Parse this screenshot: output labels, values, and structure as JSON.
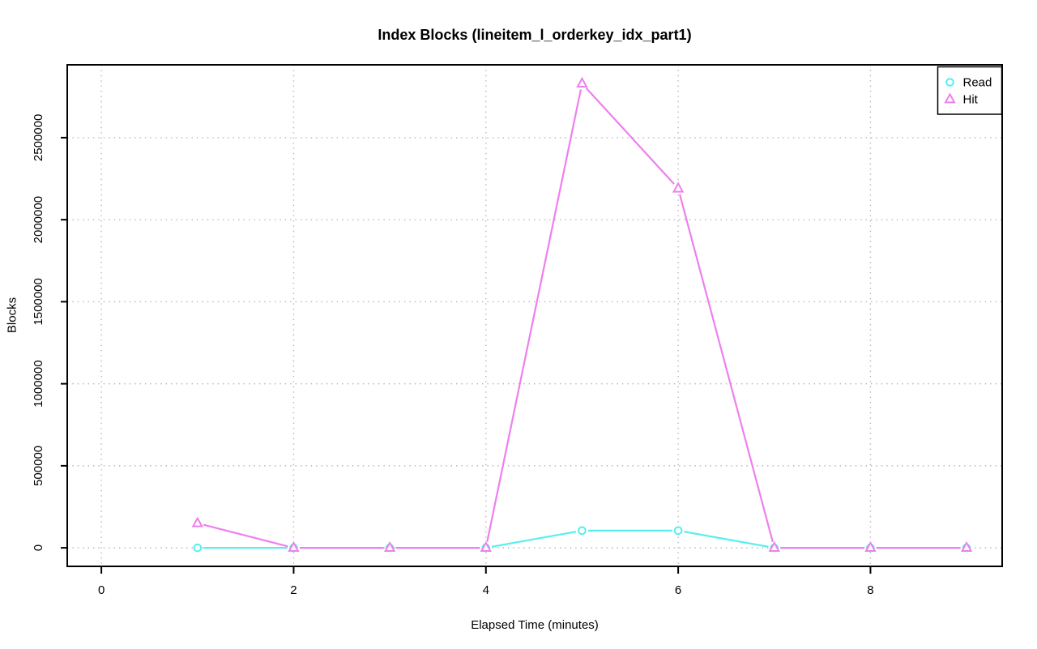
{
  "page": {
    "background": "#ffffff"
  },
  "chart_data": {
    "type": "line",
    "title": "Index Blocks (lineitem_l_orderkey_idx_part1)",
    "xlabel": "Elapsed Time (minutes)",
    "ylabel": "Blocks",
    "x": [
      1,
      2,
      3,
      4,
      5,
      6,
      7,
      8,
      9
    ],
    "series": [
      {
        "name": "Read",
        "marker": "circle",
        "color": "#55EFEF",
        "values": [
          0,
          0,
          0,
          0,
          105000,
          105000,
          0,
          0,
          0
        ]
      },
      {
        "name": "Hit",
        "marker": "triangle",
        "color": "#EE7FEE",
        "values": [
          150000,
          0,
          0,
          0,
          2830000,
          2190000,
          0,
          0,
          0
        ]
      }
    ],
    "x_ticks": [
      0,
      2,
      4,
      6,
      8
    ],
    "y_ticks": [
      0,
      500000,
      1000000,
      1500000,
      2000000,
      2500000
    ],
    "xlim": [
      -0.355,
      9.37
    ],
    "ylim": [
      -113000,
      2944000
    ],
    "grid": true,
    "grid_color": "#B5B5B5",
    "axis_color": "#000000",
    "legend_position": "top-right",
    "legend": [
      "Read",
      "Hit"
    ],
    "line_style": "points-with-line-gaps"
  }
}
